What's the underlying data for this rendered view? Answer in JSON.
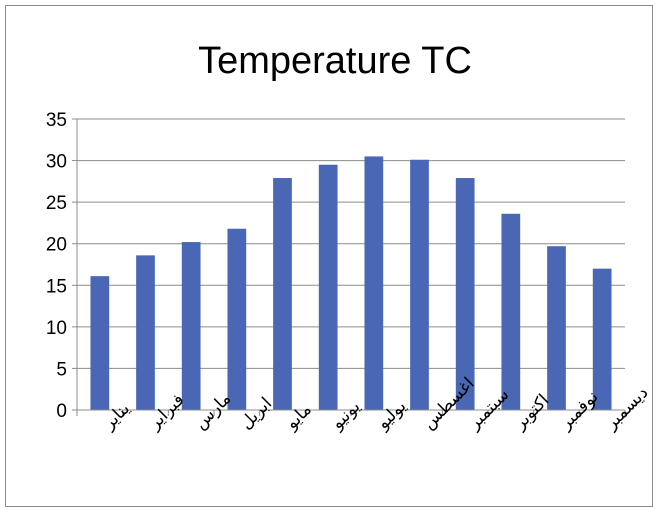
{
  "chart_data": {
    "type": "bar",
    "title": "Temperature TC",
    "xlabel": "",
    "ylabel": "",
    "categories": [
      "يناير",
      "فبراير",
      "مارس",
      "ابريل",
      "مايو",
      "يونيو",
      "يوليو",
      "اغسطس",
      "سبتمبر",
      "اكتوبر",
      "نوفمبر",
      "ديسمبر"
    ],
    "series": [
      {
        "values": [
          16.1,
          18.6,
          20.2,
          21.8,
          27.9,
          29.5,
          30.5,
          30.1,
          27.9,
          23.6,
          19.7,
          17.0
        ]
      }
    ],
    "ylim": [
      0,
      35
    ],
    "yticks": [
      0,
      5,
      10,
      15,
      20,
      25,
      30,
      35
    ],
    "grid": true,
    "legend": "none",
    "colors": {
      "bar": "#4a67b5",
      "grid": "#8c8c8c",
      "axis": "#8c8c8c"
    }
  }
}
